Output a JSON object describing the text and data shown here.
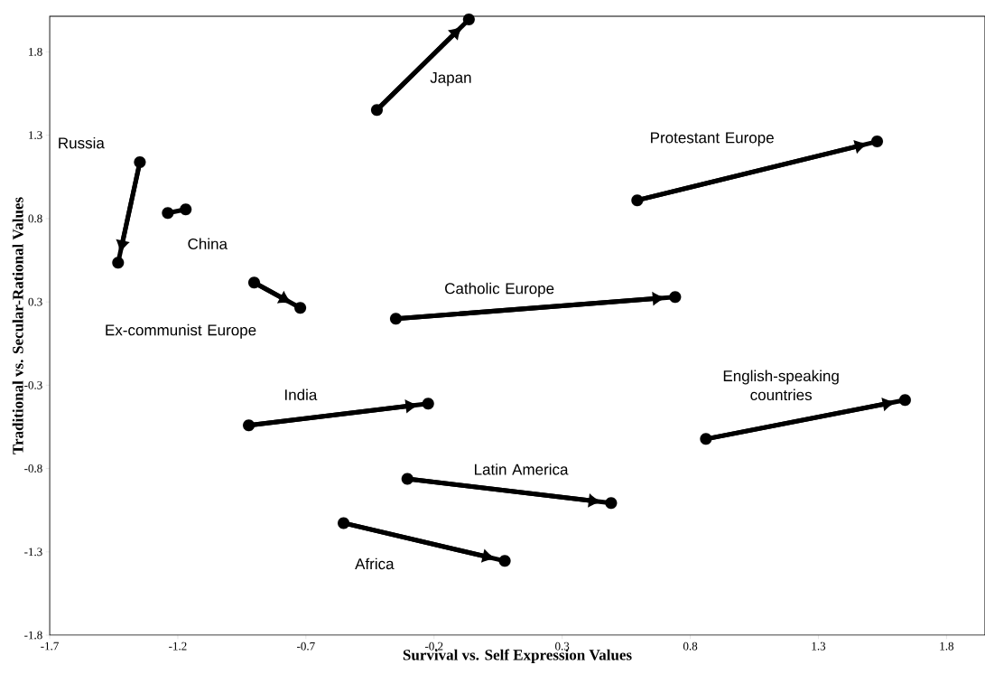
{
  "chart_data": {
    "type": "line",
    "xlabel": "Survival vs. Self Expression Values",
    "ylabel": "Traditional vs. Secular-Rational Values",
    "xlim": [
      -1.7,
      1.95
    ],
    "ylim": [
      -1.8,
      2.02
    ],
    "xticks": [
      -1.7,
      -1.2,
      -0.7,
      -0.2,
      0.3,
      0.8,
      1.3,
      1.8
    ],
    "yticks": [
      {
        "value": -1.8,
        "label": "-1.8"
      },
      {
        "value": -1.286,
        "label": "-1.3"
      },
      {
        "value": -0.771,
        "label": "-0.8"
      },
      {
        "value": -0.257,
        "label": "-0.3"
      },
      {
        "value": 0.257,
        "label": "0.3"
      },
      {
        "value": 0.771,
        "label": "0.8"
      },
      {
        "value": 1.286,
        "label": "1.3"
      },
      {
        "value": 1.8,
        "label": "1.8"
      }
    ],
    "marker": "circle",
    "line_style": "solid",
    "series": [
      {
        "name": "Russia",
        "color": "#000000",
        "x": [
          -1.348,
          -1.433
        ],
        "values": [
          1.119,
          0.499
        ]
      },
      {
        "name": "China",
        "color": "#000000",
        "x": [
          -1.239,
          -1.169
        ],
        "values": [
          0.806,
          0.828
        ]
      },
      {
        "name": "Japan",
        "color": "#000000",
        "x": [
          -0.423,
          -0.064
        ],
        "values": [
          1.442,
          2.0
        ]
      },
      {
        "name": "Ex-communist Europe",
        "color": "#000000",
        "x": [
          -0.902,
          -0.722
        ],
        "values": [
          0.376,
          0.22
        ]
      },
      {
        "name": "Protestant Europe",
        "color": "#000000",
        "x": [
          0.593,
          1.529
        ],
        "values": [
          0.884,
          1.247
        ]
      },
      {
        "name": "Catholic Europe",
        "color": "#000000",
        "x": [
          -0.349,
          0.741
        ],
        "values": [
          0.153,
          0.287
        ]
      },
      {
        "name": "India",
        "color": "#000000",
        "x": [
          -0.923,
          -0.223
        ],
        "values": [
          -0.505,
          -0.371
        ]
      },
      {
        "name": "English-speaking countries",
        "color": "#000000",
        "x": [
          0.861,
          1.638
        ],
        "values": [
          -0.589,
          -0.349
        ]
      },
      {
        "name": "Latin America",
        "color": "#000000",
        "x": [
          -0.304,
          0.491
        ],
        "values": [
          -0.835,
          -0.985
        ]
      },
      {
        "name": "Africa",
        "color": "#000000",
        "x": [
          -0.553,
          0.076
        ],
        "values": [
          -1.108,
          -1.342
        ]
      }
    ]
  }
}
